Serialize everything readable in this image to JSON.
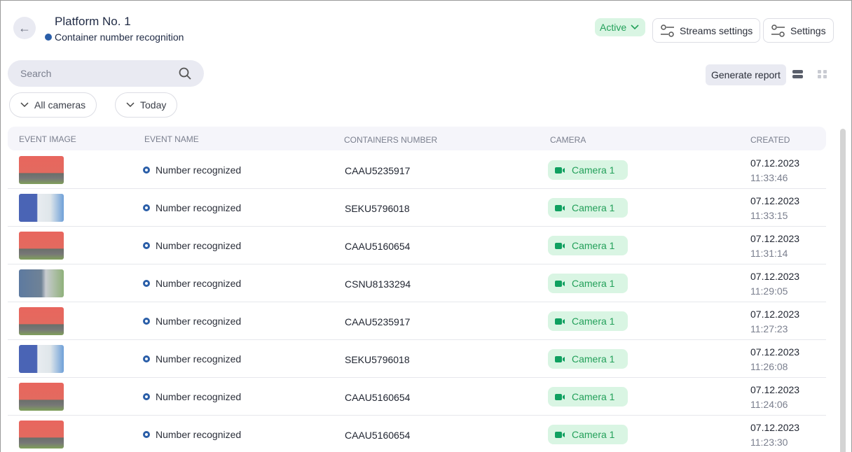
{
  "header": {
    "title": "Platform No. 1",
    "subtitle": "Container number recognition",
    "status": "Active",
    "streams_settings": "Streams settings",
    "settings": "Settings"
  },
  "toolbar": {
    "search_placeholder": "Search",
    "generate_report": "Generate report",
    "filters": [
      "All cameras",
      "Today"
    ]
  },
  "table": {
    "columns": [
      "Event image",
      "Event name",
      "Containers number",
      "Camera",
      "Created"
    ],
    "rows": [
      {
        "image": "red",
        "event": "Number recognized",
        "number": "CAAU5235917",
        "camera": "Camera 1",
        "date": "07.12.2023",
        "time": "11:33:46"
      },
      {
        "image": "blue",
        "event": "Number recognized",
        "number": "SEKU5796018",
        "camera": "Camera 1",
        "date": "07.12.2023",
        "time": "11:33:15"
      },
      {
        "image": "red",
        "event": "Number recognized",
        "number": "CAAU5160654",
        "camera": "Camera 1",
        "date": "07.12.2023",
        "time": "11:31:14"
      },
      {
        "image": "gray",
        "event": "Number recognized",
        "number": "CSNU8133294",
        "camera": "Camera 1",
        "date": "07.12.2023",
        "time": "11:29:05"
      },
      {
        "image": "red",
        "event": "Number recognized",
        "number": "CAAU5235917",
        "camera": "Camera 1",
        "date": "07.12.2023",
        "time": "11:27:23"
      },
      {
        "image": "blue",
        "event": "Number recognized",
        "number": "SEKU5796018",
        "camera": "Camera 1",
        "date": "07.12.2023",
        "time": "11:26:08"
      },
      {
        "image": "red",
        "event": "Number recognized",
        "number": "CAAU5160654",
        "camera": "Camera 1",
        "date": "07.12.2023",
        "time": "11:24:06"
      },
      {
        "image": "red",
        "event": "Number recognized",
        "number": "CAAU5160654",
        "camera": "Camera 1",
        "date": "07.12.2023",
        "time": "11:23:30"
      }
    ]
  },
  "colors": {
    "accent": "#2a5ea8",
    "success": "#23a05a",
    "success_bg": "#d9f5e3"
  },
  "icons": {
    "back": "arrow-left-icon",
    "search": "search-icon",
    "settings": "sliders-icon",
    "camera": "video-camera-icon",
    "list_view": "list-view-icon",
    "grid_view": "grid-view-icon"
  }
}
